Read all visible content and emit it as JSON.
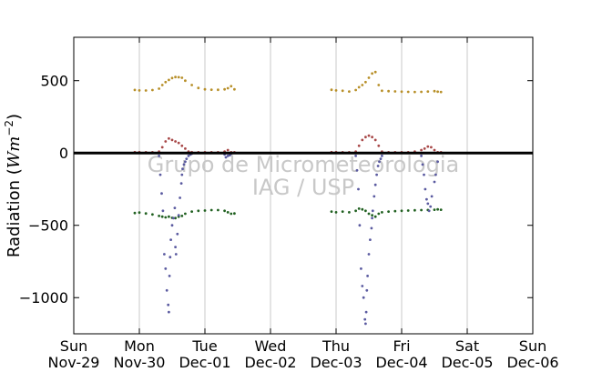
{
  "chart_data": {
    "type": "scatter",
    "ylabel": "Radiation (",
    "ylabel_math": "Wm",
    "ylabel_exp": "−2",
    "ylabel_close": ")",
    "ylim": [
      -1250,
      800
    ],
    "xlim": [
      0,
      7
    ],
    "yticks": [
      500,
      0,
      -500,
      -1000
    ],
    "ytick_labels": [
      "500",
      "0",
      "−500",
      "−1000"
    ],
    "xticks": [
      {
        "pos": 0,
        "day": "Sun",
        "date": "Nov-29"
      },
      {
        "pos": 1,
        "day": "Mon",
        "date": "Nov-30"
      },
      {
        "pos": 2,
        "day": "Tue",
        "date": "Dec-01"
      },
      {
        "pos": 3,
        "day": "Wed",
        "date": "Dec-02"
      },
      {
        "pos": 4,
        "day": "Thu",
        "date": "Dec-03"
      },
      {
        "pos": 5,
        "day": "Fri",
        "date": "Dec-04"
      },
      {
        "pos": 6,
        "day": "Sat",
        "date": "Dec-05"
      },
      {
        "pos": 7,
        "day": "Sun",
        "date": "Dec-06"
      }
    ],
    "grid_x": true,
    "grid_y": false,
    "zero_line": true,
    "watermark": [
      "Grupo de Micrometeorologia",
      "IAG / USP"
    ],
    "colors": {
      "s1": "#b8902a",
      "s2": "#a84848",
      "s3": "#206020",
      "s4": "#5a5aa0",
      "zero": "#000000",
      "grid": "#c8c8c8"
    },
    "series": [
      {
        "color_key": "s1",
        "x": [
          0.93,
          1.0,
          1.1,
          1.2,
          1.3,
          1.35,
          1.4,
          1.45,
          1.5,
          1.55,
          1.6,
          1.65,
          1.7,
          1.8,
          1.9,
          2.0,
          2.1,
          2.2,
          2.3,
          2.35,
          2.4,
          2.45,
          3.93,
          4.0,
          4.1,
          4.2,
          4.3,
          4.35,
          4.4,
          4.45,
          4.5,
          4.55,
          4.6,
          4.65,
          4.7,
          4.8,
          4.9,
          5.0,
          5.1,
          5.2,
          5.3,
          5.4,
          5.5,
          5.55,
          5.6
        ],
        "y": [
          436,
          433,
          432,
          435,
          445,
          470,
          490,
          505,
          518,
          525,
          524,
          520,
          500,
          470,
          450,
          440,
          438,
          437,
          440,
          448,
          462,
          440,
          437,
          433,
          430,
          425,
          435,
          455,
          470,
          490,
          520,
          550,
          560,
          470,
          430,
          428,
          426,
          424,
          423,
          422,
          423,
          425,
          428,
          424,
          422
        ]
      },
      {
        "color_key": "s2",
        "x": [
          0.93,
          1.0,
          1.1,
          1.2,
          1.3,
          1.35,
          1.4,
          1.45,
          1.5,
          1.55,
          1.6,
          1.65,
          1.7,
          1.75,
          1.8,
          1.9,
          2.0,
          2.1,
          2.2,
          2.3,
          2.35,
          2.4,
          2.45,
          3.93,
          4.0,
          4.1,
          4.2,
          4.3,
          4.35,
          4.4,
          4.45,
          4.5,
          4.55,
          4.6,
          4.65,
          4.7,
          4.8,
          4.9,
          5.0,
          5.1,
          5.2,
          5.3,
          5.35,
          5.4,
          5.45,
          5.5,
          5.55,
          5.6
        ],
        "y": [
          6,
          6,
          5,
          5,
          10,
          40,
          80,
          100,
          90,
          80,
          70,
          50,
          30,
          10,
          6,
          5,
          5,
          5,
          5,
          10,
          20,
          5,
          5,
          6,
          6,
          5,
          5,
          10,
          50,
          90,
          110,
          120,
          110,
          90,
          50,
          10,
          5,
          5,
          5,
          5,
          10,
          20,
          30,
          45,
          40,
          20,
          5,
          5
        ]
      },
      {
        "color_key": "s3",
        "x": [
          0.93,
          1.0,
          1.1,
          1.2,
          1.3,
          1.35,
          1.4,
          1.45,
          1.5,
          1.55,
          1.6,
          1.65,
          1.7,
          1.8,
          1.9,
          2.0,
          2.1,
          2.2,
          2.3,
          2.35,
          2.4,
          2.45,
          3.93,
          4.0,
          4.1,
          4.2,
          4.3,
          4.35,
          4.4,
          4.45,
          4.5,
          4.55,
          4.6,
          4.65,
          4.7,
          4.8,
          4.9,
          5.0,
          5.1,
          5.2,
          5.3,
          5.4,
          5.5,
          5.55,
          5.6
        ],
        "y": [
          -415,
          -412,
          -418,
          -425,
          -435,
          -440,
          -445,
          -440,
          -448,
          -450,
          -440,
          -435,
          -420,
          -405,
          -400,
          -398,
          -395,
          -395,
          -400,
          -410,
          -420,
          -418,
          -405,
          -410,
          -405,
          -410,
          -400,
          -385,
          -390,
          -400,
          -420,
          -430,
          -440,
          -420,
          -410,
          -405,
          -402,
          -400,
          -398,
          -396,
          -395,
          -394,
          -392,
          -390,
          -392
        ]
      },
      {
        "color_key": "s4",
        "x": [
          1.3,
          1.32,
          1.34,
          1.36,
          1.38,
          1.4,
          1.42,
          1.44,
          1.45,
          1.46,
          1.47,
          1.48,
          1.5,
          1.52,
          1.54,
          1.55,
          1.56,
          1.58,
          1.6,
          1.62,
          1.64,
          1.65,
          1.66,
          1.68,
          1.7,
          1.72,
          1.75,
          1.78,
          1.8,
          2.3,
          2.32,
          2.35,
          2.38,
          2.4,
          4.3,
          4.32,
          4.34,
          4.36,
          4.38,
          4.4,
          4.42,
          4.44,
          4.45,
          4.46,
          4.47,
          4.48,
          4.5,
          4.52,
          4.54,
          4.55,
          4.56,
          4.58,
          4.6,
          4.62,
          4.64,
          4.66,
          4.68,
          4.7,
          5.3,
          5.32,
          5.34,
          5.36,
          5.38,
          5.4,
          5.42,
          5.44,
          5.46,
          5.5,
          5.52,
          5.55
        ],
        "y": [
          -20,
          -150,
          -280,
          -400,
          -700,
          -800,
          -950,
          -1050,
          -1100,
          -850,
          -720,
          -600,
          -500,
          -450,
          -380,
          -650,
          -700,
          -560,
          -430,
          -310,
          -210,
          -150,
          -110,
          -80,
          -60,
          -40,
          -20,
          -10,
          -5,
          -10,
          -30,
          -20,
          -15,
          -5,
          -20,
          -120,
          -250,
          -500,
          -800,
          -920,
          -1000,
          -1150,
          -1180,
          -1100,
          -950,
          -850,
          -700,
          -600,
          -520,
          -450,
          -400,
          -300,
          -220,
          -150,
          -90,
          -60,
          -40,
          -20,
          -20,
          -80,
          -150,
          -250,
          -320,
          -350,
          -400,
          -370,
          -300,
          -200,
          -150,
          -60
        ]
      }
    ]
  }
}
